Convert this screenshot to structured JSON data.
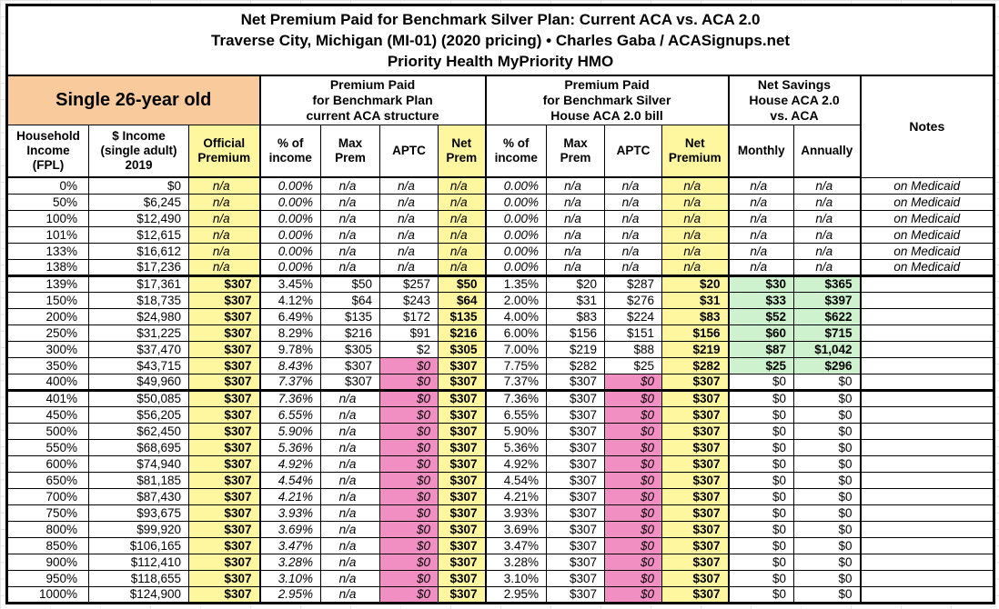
{
  "title": {
    "line1": "Net Premium Paid for Benchmark Silver Plan: Current ACA vs. ACA 2.0",
    "line2": "Traverse City, Michigan (MI-01) (2020 pricing) • Charles Gaba / ACASignups.net",
    "line3": "Priority Health MyPriority HMO"
  },
  "header": {
    "demographic": "Single 26-year old",
    "group_current_aca": "Premium Paid\nfor Benchmark Plan\ncurrent ACA structure",
    "group_house_aca2": "Premium Paid\nfor Benchmark Silver\nHouse ACA 2.0 bill",
    "group_net_savings": "Net Savings\nHouse ACA 2.0\nvs. ACA",
    "notes_label": "Notes",
    "sub": {
      "fpl": "Household\nIncome\n(FPL)",
      "income": "$ Income\n(single adult)\n2019",
      "official": "Official\nPremium",
      "pct_income_1": "% of\nincome",
      "max_prem_1": "Max\nPrem",
      "aptc_1": "APTC",
      "net_prem_1": "Net\nPrem",
      "pct_income_2": "% of\nincome",
      "max_prem_2": "Max\nPrem",
      "aptc_2": "APTC",
      "net_prem_2": "Net\nPremium",
      "monthly": "Monthly",
      "annually": "Annually"
    }
  },
  "colors": {
    "orange_header": "#F9CB9C",
    "yellow_highlight": "#FFF79F",
    "pink_highlight": "#F18FC2",
    "green_highlight": "#CDF2CD",
    "grid_line": "#000000"
  },
  "rows": [
    {
      "fpl": "0%",
      "income": "$0",
      "official": "n/a",
      "c_pct": "0.00%",
      "c_max": "n/a",
      "c_aptc": "n/a",
      "c_net": "n/a",
      "h_pct": "0.00%",
      "h_max": "n/a",
      "h_aptc": "n/a",
      "h_net": "n/a",
      "monthly": "n/a",
      "annually": "n/a",
      "note": "on Medicaid"
    },
    {
      "fpl": "50%",
      "income": "$6,245",
      "official": "n/a",
      "c_pct": "0.00%",
      "c_max": "n/a",
      "c_aptc": "n/a",
      "c_net": "n/a",
      "h_pct": "0.00%",
      "h_max": "n/a",
      "h_aptc": "n/a",
      "h_net": "n/a",
      "monthly": "n/a",
      "annually": "n/a",
      "note": "on Medicaid"
    },
    {
      "fpl": "100%",
      "income": "$12,490",
      "official": "n/a",
      "c_pct": "0.00%",
      "c_max": "n/a",
      "c_aptc": "n/a",
      "c_net": "n/a",
      "h_pct": "0.00%",
      "h_max": "n/a",
      "h_aptc": "n/a",
      "h_net": "n/a",
      "monthly": "n/a",
      "annually": "n/a",
      "note": "on Medicaid"
    },
    {
      "fpl": "101%",
      "income": "$12,615",
      "official": "n/a",
      "c_pct": "0.00%",
      "c_max": "n/a",
      "c_aptc": "n/a",
      "c_net": "n/a",
      "h_pct": "0.00%",
      "h_max": "n/a",
      "h_aptc": "n/a",
      "h_net": "n/a",
      "monthly": "n/a",
      "annually": "n/a",
      "note": "on Medicaid"
    },
    {
      "fpl": "133%",
      "income": "$16,612",
      "official": "n/a",
      "c_pct": "0.00%",
      "c_max": "n/a",
      "c_aptc": "n/a",
      "c_net": "n/a",
      "h_pct": "0.00%",
      "h_max": "n/a",
      "h_aptc": "n/a",
      "h_net": "n/a",
      "monthly": "n/a",
      "annually": "n/a",
      "note": "on Medicaid"
    },
    {
      "fpl": "138%",
      "income": "$17,236",
      "official": "n/a",
      "c_pct": "0.00%",
      "c_max": "n/a",
      "c_aptc": "n/a",
      "c_net": "n/a",
      "h_pct": "0.00%",
      "h_max": "n/a",
      "h_aptc": "n/a",
      "h_net": "n/a",
      "monthly": "n/a",
      "annually": "n/a",
      "note": "on Medicaid",
      "thickBottom": true
    },
    {
      "fpl": "139%",
      "income": "$17,361",
      "official": "$307",
      "c_pct": "3.45%",
      "c_max": "$50",
      "c_aptc": "$257",
      "c_net": "$50",
      "h_pct": "1.35%",
      "h_max": "$20",
      "h_aptc": "$287",
      "h_net": "$20",
      "monthly": "$30",
      "annually": "$365",
      "note": ""
    },
    {
      "fpl": "150%",
      "income": "$18,735",
      "official": "$307",
      "c_pct": "4.12%",
      "c_max": "$64",
      "c_aptc": "$243",
      "c_net": "$64",
      "h_pct": "2.00%",
      "h_max": "$31",
      "h_aptc": "$276",
      "h_net": "$31",
      "monthly": "$33",
      "annually": "$397",
      "note": ""
    },
    {
      "fpl": "200%",
      "income": "$24,980",
      "official": "$307",
      "c_pct": "6.49%",
      "c_max": "$135",
      "c_aptc": "$172",
      "c_net": "$135",
      "h_pct": "4.00%",
      "h_max": "$83",
      "h_aptc": "$224",
      "h_net": "$83",
      "monthly": "$52",
      "annually": "$622",
      "note": ""
    },
    {
      "fpl": "250%",
      "income": "$31,225",
      "official": "$307",
      "c_pct": "8.29%",
      "c_max": "$216",
      "c_aptc": "$91",
      "c_net": "$216",
      "h_pct": "6.00%",
      "h_max": "$156",
      "h_aptc": "$151",
      "h_net": "$156",
      "monthly": "$60",
      "annually": "$715",
      "note": ""
    },
    {
      "fpl": "300%",
      "income": "$37,470",
      "official": "$307",
      "c_pct": "9.78%",
      "c_max": "$305",
      "c_aptc": "$2",
      "c_net": "$305",
      "h_pct": "7.00%",
      "h_max": "$219",
      "h_aptc": "$88",
      "h_net": "$219",
      "monthly": "$87",
      "annually": "$1,042",
      "note": ""
    },
    {
      "fpl": "350%",
      "income": "$43,715",
      "official": "$307",
      "c_pct": "8.43%",
      "c_max": "$307",
      "c_aptc": "$0",
      "c_net": "$307",
      "h_pct": "7.75%",
      "h_max": "$282",
      "h_aptc": "$25",
      "h_net": "$282",
      "monthly": "$25",
      "annually": "$296",
      "note": ""
    },
    {
      "fpl": "400%",
      "income": "$49,960",
      "official": "$307",
      "c_pct": "7.37%",
      "c_max": "$307",
      "c_aptc": "$0",
      "c_net": "$307",
      "h_pct": "7.37%",
      "h_max": "$307",
      "h_aptc": "$0",
      "h_net": "$307",
      "monthly": "$0",
      "annually": "$0",
      "note": "",
      "thickBottom": true
    },
    {
      "fpl": "401%",
      "income": "$50,085",
      "official": "$307",
      "c_pct": "7.36%",
      "c_max": "n/a",
      "c_aptc": "$0",
      "c_net": "$307",
      "h_pct": "7.36%",
      "h_max": "$307",
      "h_aptc": "$0",
      "h_net": "$307",
      "monthly": "$0",
      "annually": "$0",
      "note": ""
    },
    {
      "fpl": "450%",
      "income": "$56,205",
      "official": "$307",
      "c_pct": "6.55%",
      "c_max": "n/a",
      "c_aptc": "$0",
      "c_net": "$307",
      "h_pct": "6.55%",
      "h_max": "$307",
      "h_aptc": "$0",
      "h_net": "$307",
      "monthly": "$0",
      "annually": "$0",
      "note": ""
    },
    {
      "fpl": "500%",
      "income": "$62,450",
      "official": "$307",
      "c_pct": "5.90%",
      "c_max": "n/a",
      "c_aptc": "$0",
      "c_net": "$307",
      "h_pct": "5.90%",
      "h_max": "$307",
      "h_aptc": "$0",
      "h_net": "$307",
      "monthly": "$0",
      "annually": "$0",
      "note": ""
    },
    {
      "fpl": "550%",
      "income": "$68,695",
      "official": "$307",
      "c_pct": "5.36%",
      "c_max": "n/a",
      "c_aptc": "$0",
      "c_net": "$307",
      "h_pct": "5.36%",
      "h_max": "$307",
      "h_aptc": "$0",
      "h_net": "$307",
      "monthly": "$0",
      "annually": "$0",
      "note": ""
    },
    {
      "fpl": "600%",
      "income": "$74,940",
      "official": "$307",
      "c_pct": "4.92%",
      "c_max": "n/a",
      "c_aptc": "$0",
      "c_net": "$307",
      "h_pct": "4.92%",
      "h_max": "$307",
      "h_aptc": "$0",
      "h_net": "$307",
      "monthly": "$0",
      "annually": "$0",
      "note": ""
    },
    {
      "fpl": "650%",
      "income": "$81,185",
      "official": "$307",
      "c_pct": "4.54%",
      "c_max": "n/a",
      "c_aptc": "$0",
      "c_net": "$307",
      "h_pct": "4.54%",
      "h_max": "$307",
      "h_aptc": "$0",
      "h_net": "$307",
      "monthly": "$0",
      "annually": "$0",
      "note": ""
    },
    {
      "fpl": "700%",
      "income": "$87,430",
      "official": "$307",
      "c_pct": "4.21%",
      "c_max": "n/a",
      "c_aptc": "$0",
      "c_net": "$307",
      "h_pct": "4.21%",
      "h_max": "$307",
      "h_aptc": "$0",
      "h_net": "$307",
      "monthly": "$0",
      "annually": "$0",
      "note": ""
    },
    {
      "fpl": "750%",
      "income": "$93,675",
      "official": "$307",
      "c_pct": "3.93%",
      "c_max": "n/a",
      "c_aptc": "$0",
      "c_net": "$307",
      "h_pct": "3.93%",
      "h_max": "$307",
      "h_aptc": "$0",
      "h_net": "$307",
      "monthly": "$0",
      "annually": "$0",
      "note": ""
    },
    {
      "fpl": "800%",
      "income": "$99,920",
      "official": "$307",
      "c_pct": "3.69%",
      "c_max": "n/a",
      "c_aptc": "$0",
      "c_net": "$307",
      "h_pct": "3.69%",
      "h_max": "$307",
      "h_aptc": "$0",
      "h_net": "$307",
      "monthly": "$0",
      "annually": "$0",
      "note": ""
    },
    {
      "fpl": "850%",
      "income": "$106,165",
      "official": "$307",
      "c_pct": "3.47%",
      "c_max": "n/a",
      "c_aptc": "$0",
      "c_net": "$307",
      "h_pct": "3.47%",
      "h_max": "$307",
      "h_aptc": "$0",
      "h_net": "$307",
      "monthly": "$0",
      "annually": "$0",
      "note": ""
    },
    {
      "fpl": "900%",
      "income": "$112,410",
      "official": "$307",
      "c_pct": "3.28%",
      "c_max": "n/a",
      "c_aptc": "$0",
      "c_net": "$307",
      "h_pct": "3.28%",
      "h_max": "$307",
      "h_aptc": "$0",
      "h_net": "$307",
      "monthly": "$0",
      "annually": "$0",
      "note": ""
    },
    {
      "fpl": "950%",
      "income": "$118,655",
      "official": "$307",
      "c_pct": "3.10%",
      "c_max": "n/a",
      "c_aptc": "$0",
      "c_net": "$307",
      "h_pct": "3.10%",
      "h_max": "$307",
      "h_aptc": "$0",
      "h_net": "$307",
      "monthly": "$0",
      "annually": "$0",
      "note": ""
    },
    {
      "fpl": "1000%",
      "income": "$124,900",
      "official": "$307",
      "c_pct": "2.95%",
      "c_max": "n/a",
      "c_aptc": "$0",
      "c_net": "$307",
      "h_pct": "2.95%",
      "h_max": "$307",
      "h_aptc": "$0",
      "h_net": "$307",
      "monthly": "$0",
      "annually": "$0",
      "note": ""
    }
  ]
}
